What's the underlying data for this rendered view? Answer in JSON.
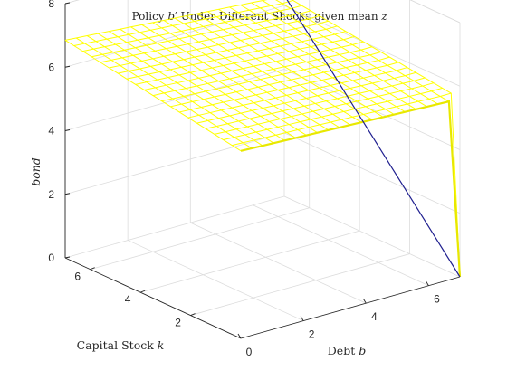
{
  "chart_data": {
    "type": "surface",
    "title": "Policy b′ Under Different Shocks given mean z⁻",
    "title_parts": {
      "prefix": "Policy ",
      "bprime": "b",
      "prime_mark": "′",
      "middle": " Under Different Shocks given mean ",
      "z": "z",
      "z_sup": "−"
    },
    "xlabel_parts": {
      "text": "Debt ",
      "var": "b"
    },
    "ylabel_parts": {
      "text": "Capital Stock ",
      "var": "k"
    },
    "zlabel": "bond",
    "xlim": [
      0,
      7
    ],
    "ylim": [
      0,
      7
    ],
    "zlim": [
      0,
      8
    ],
    "x_ticks": [
      "0",
      "2",
      "4",
      "6"
    ],
    "y_ticks": [
      "2",
      "4",
      "6"
    ],
    "z_ticks": [
      "0",
      "2",
      "4",
      "6",
      "8"
    ],
    "grid": true,
    "x_grid_values": [
      0,
      0.35,
      0.7,
      1.05,
      1.4,
      1.75,
      2.1,
      2.45,
      2.8,
      3.15,
      3.5,
      3.85,
      4.2,
      4.55,
      4.9,
      5.25,
      5.6,
      5.95,
      6.3,
      6.65,
      7.0
    ],
    "y_grid_values": [
      0,
      0.35,
      0.7,
      1.05,
      1.4,
      1.75,
      2.1,
      2.45,
      2.8,
      3.15,
      3.5,
      3.85,
      4.2,
      4.55,
      4.9,
      5.25,
      5.6,
      5.95,
      6.3,
      6.65,
      7.0
    ],
    "surface_plateau": {
      "z_at_b0_k7": 6.85,
      "z_at_b7_k0": 5.6,
      "z_at_b0_k0": 5.9,
      "z_at_b7_k7": 6.3
    },
    "drop_edge": {
      "x": 7.0,
      "z_after_drop": 0.0,
      "note_color": "#1f1f8f"
    },
    "surface_color": "#ffff00",
    "surface_edge_color": "#e8e800",
    "drop_line_color": "#1f1f8f"
  }
}
